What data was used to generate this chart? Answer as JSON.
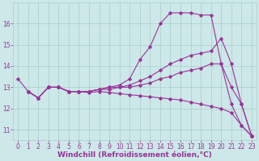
{
  "background_color": "#cce8e8",
  "line_color": "#993399",
  "grid_color": "#aacccc",
  "xlabel": "Windchill (Refroidissement éolien,°C)",
  "xlabel_color": "#993399",
  "xtick_color": "#993399",
  "ytick_color": "#993399",
  "xlabel_fontsize": 6.5,
  "tick_fontsize": 5.5,
  "xlim": [
    -0.5,
    23.5
  ],
  "ylim": [
    10.5,
    17.0
  ],
  "yticks": [
    11,
    12,
    13,
    14,
    15,
    16
  ],
  "xticks": [
    0,
    1,
    2,
    3,
    4,
    5,
    6,
    7,
    8,
    9,
    10,
    11,
    12,
    13,
    14,
    15,
    16,
    17,
    18,
    19,
    20,
    21,
    22,
    23
  ],
  "series": [
    {
      "x": [
        0,
        1,
        2,
        3,
        4,
        5,
        6,
        7,
        8,
        9,
        10,
        11,
        12,
        13,
        14,
        15,
        16,
        17,
        18,
        19,
        20,
        21,
        22,
        23
      ],
      "y": [
        13.4,
        12.8,
        12.5,
        13.0,
        13.0,
        12.8,
        12.8,
        12.8,
        12.9,
        13.0,
        13.1,
        13.4,
        14.3,
        14.9,
        16.0,
        16.5,
        16.5,
        16.5,
        16.4,
        16.4,
        14.1,
        12.2,
        11.2,
        10.7
      ]
    },
    {
      "x": [
        1,
        2,
        3,
        4,
        5,
        6,
        7,
        8,
        9,
        10,
        11,
        12,
        13,
        14,
        15,
        16,
        17,
        18,
        19,
        20,
        21,
        22,
        23
      ],
      "y": [
        12.8,
        12.5,
        13.0,
        13.0,
        12.8,
        12.8,
        12.8,
        12.9,
        13.0,
        13.0,
        13.1,
        13.3,
        13.5,
        13.8,
        14.1,
        14.3,
        14.5,
        14.6,
        14.7,
        15.3,
        14.1,
        12.2,
        10.7
      ]
    },
    {
      "x": [
        1,
        2,
        3,
        4,
        5,
        6,
        7,
        8,
        9,
        10,
        11,
        12,
        13,
        14,
        15,
        16,
        17,
        18,
        19,
        20,
        21,
        22,
        23
      ],
      "y": [
        12.8,
        12.5,
        13.0,
        13.0,
        12.8,
        12.8,
        12.8,
        12.9,
        12.9,
        13.0,
        13.0,
        13.1,
        13.2,
        13.4,
        13.5,
        13.7,
        13.8,
        13.9,
        14.1,
        14.1,
        13.0,
        12.2,
        10.7
      ]
    },
    {
      "x": [
        1,
        2,
        3,
        4,
        5,
        6,
        7,
        8,
        9,
        10,
        11,
        12,
        13,
        14,
        15,
        16,
        17,
        18,
        19,
        20,
        21,
        22,
        23
      ],
      "y": [
        12.8,
        12.5,
        13.0,
        13.0,
        12.8,
        12.8,
        12.75,
        12.8,
        12.75,
        12.7,
        12.65,
        12.6,
        12.55,
        12.5,
        12.45,
        12.4,
        12.3,
        12.2,
        12.1,
        12.0,
        11.8,
        11.2,
        10.7
      ]
    }
  ]
}
